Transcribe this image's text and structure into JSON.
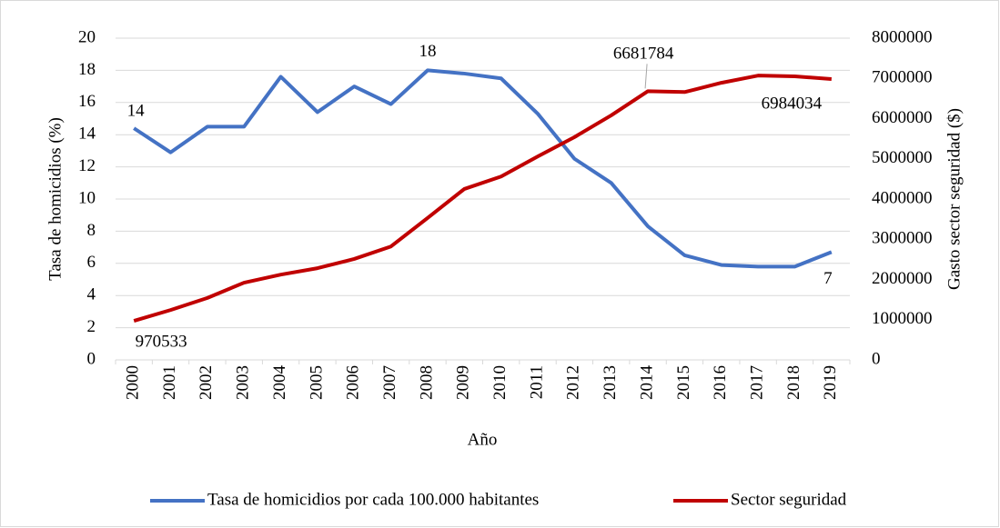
{
  "chart_data": {
    "type": "line",
    "x_label": "Año",
    "y_label": "Tasa de homicidios (%)",
    "y2_label": "Gasto sector seguridad ($)",
    "categories": [
      "2000",
      "2001",
      "2002",
      "2003",
      "2004",
      "2005",
      "2006",
      "2007",
      "2008",
      "2009",
      "2010",
      "2011",
      "2012",
      "2013",
      "2014",
      "2015",
      "2016",
      "2017",
      "2018",
      "2019"
    ],
    "series": [
      {
        "name": "Tasa de homicidios por cada 100.000 habitantes",
        "color": "#4472c4",
        "values": [
          14.4,
          12.9,
          14.5,
          14.5,
          17.6,
          15.4,
          17.0,
          15.9,
          18.0,
          17.8,
          17.5,
          15.3,
          12.5,
          11.0,
          8.3,
          6.5,
          5.9,
          5.8,
          5.8,
          6.7
        ],
        "value_labels": [
          "14",
          null,
          null,
          null,
          null,
          null,
          null,
          null,
          "18",
          null,
          null,
          null,
          null,
          null,
          null,
          null,
          null,
          null,
          null,
          "7"
        ]
      },
      {
        "name": "Sector seguridad",
        "color": "#c00000",
        "axis": "y2",
        "values": [
          970533,
          1240000,
          1540000,
          1920000,
          2120000,
          2280000,
          2510000,
          2820000,
          3530000,
          4250000,
          4560000,
          5060000,
          5540000,
          6080000,
          6681784,
          6660000,
          6890000,
          7070000,
          7050000,
          6984034
        ],
        "value_labels": [
          "970533",
          null,
          null,
          null,
          null,
          null,
          null,
          null,
          null,
          null,
          null,
          null,
          null,
          null,
          "6681784",
          null,
          null,
          null,
          null,
          "6984034"
        ]
      }
    ],
    "ylim": [
      0,
      20
    ],
    "yticks": [
      0,
      2,
      4,
      6,
      8,
      10,
      12,
      14,
      16,
      18,
      20
    ],
    "y2lim": [
      0,
      8000000
    ],
    "y2ticks": [
      0,
      1000000,
      2000000,
      3000000,
      4000000,
      5000000,
      6000000,
      7000000,
      8000000
    ],
    "grid": true,
    "legend": "bottom"
  }
}
